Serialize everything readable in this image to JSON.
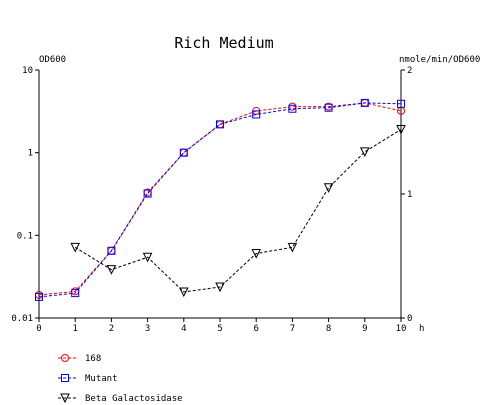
{
  "chart_data": {
    "type": "line",
    "title": "Rich Medium",
    "y_left_label": "OD600",
    "y_right_label": "nmole/min/OD600",
    "x_unit_label": "h",
    "x_ticks": [
      "0",
      "1",
      "2",
      "3",
      "4",
      "5",
      "6",
      "7",
      "8",
      "9",
      "10"
    ],
    "y_left_ticks": [
      {
        "value": 10,
        "label": "10"
      },
      {
        "value": 1,
        "label": "1"
      },
      {
        "value": 0.1,
        "label": "0.1"
      },
      {
        "value": 0.01,
        "label": "0.01"
      }
    ],
    "y_right_ticks": [
      {
        "value": 2,
        "label": "2"
      },
      {
        "value": 1,
        "label": "1"
      },
      {
        "value": 0,
        "label": "0"
      }
    ],
    "xlim": [
      0,
      10
    ],
    "ylim_left": [
      0.01,
      10
    ],
    "ylim_left_scale": "log",
    "ylim_right": [
      0,
      2
    ],
    "legend_placement": "bottom-left",
    "series": [
      {
        "name": "168",
        "axis": "left",
        "color": "#ff0000",
        "marker": "circle",
        "x": [
          0,
          1,
          2,
          3,
          4,
          5,
          6,
          7,
          8,
          9,
          10
        ],
        "values": [
          0.019,
          0.021,
          0.065,
          0.33,
          1.0,
          2.2,
          3.2,
          3.6,
          3.6,
          4.0,
          3.2
        ]
      },
      {
        "name": "Mutant",
        "axis": "left",
        "color": "#0000ff",
        "marker": "square",
        "x": [
          0,
          1,
          2,
          3,
          4,
          5,
          6,
          7,
          8,
          9,
          10
        ],
        "values": [
          0.018,
          0.02,
          0.065,
          0.32,
          1.0,
          2.2,
          2.9,
          3.4,
          3.5,
          4.0,
          3.9
        ]
      },
      {
        "name": "Beta Galactosidase",
        "axis": "right",
        "color": "#000000",
        "marker": "triangle-down",
        "x": [
          1,
          2,
          3,
          4,
          5,
          6,
          7,
          8,
          9,
          10
        ],
        "values": [
          0.57,
          0.39,
          0.49,
          0.21,
          0.25,
          0.52,
          0.57,
          1.05,
          1.34,
          1.52
        ]
      }
    ]
  }
}
